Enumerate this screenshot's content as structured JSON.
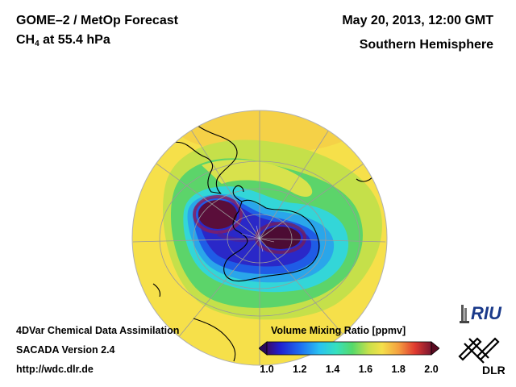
{
  "header": {
    "instrument": "GOME–2 / MetOp Forecast",
    "species": "CH",
    "species_sub": "4",
    "level": " at 55.4 hPa",
    "datetime": "May 20, 2013, 12:00 GMT",
    "region": "Southern Hemisphere"
  },
  "footer": {
    "line1": "4DVar Chemical Data Assimilation",
    "line2": "SACADA Version 2.4",
    "line3": "http://wdc.dlr.de"
  },
  "colorbar": {
    "title": "Volume Mixing Ratio [ppmv]",
    "min": 1.0,
    "max": 2.0,
    "ticks": [
      "1.0",
      "1.2",
      "1.4",
      "1.6",
      "1.8",
      "2.0"
    ]
  },
  "logos": {
    "riu": "RIU",
    "dlr": "DLR"
  },
  "colors": {
    "background": "#ffffff",
    "coastline": "#000000",
    "graticule": "#9a9a9a"
  }
}
